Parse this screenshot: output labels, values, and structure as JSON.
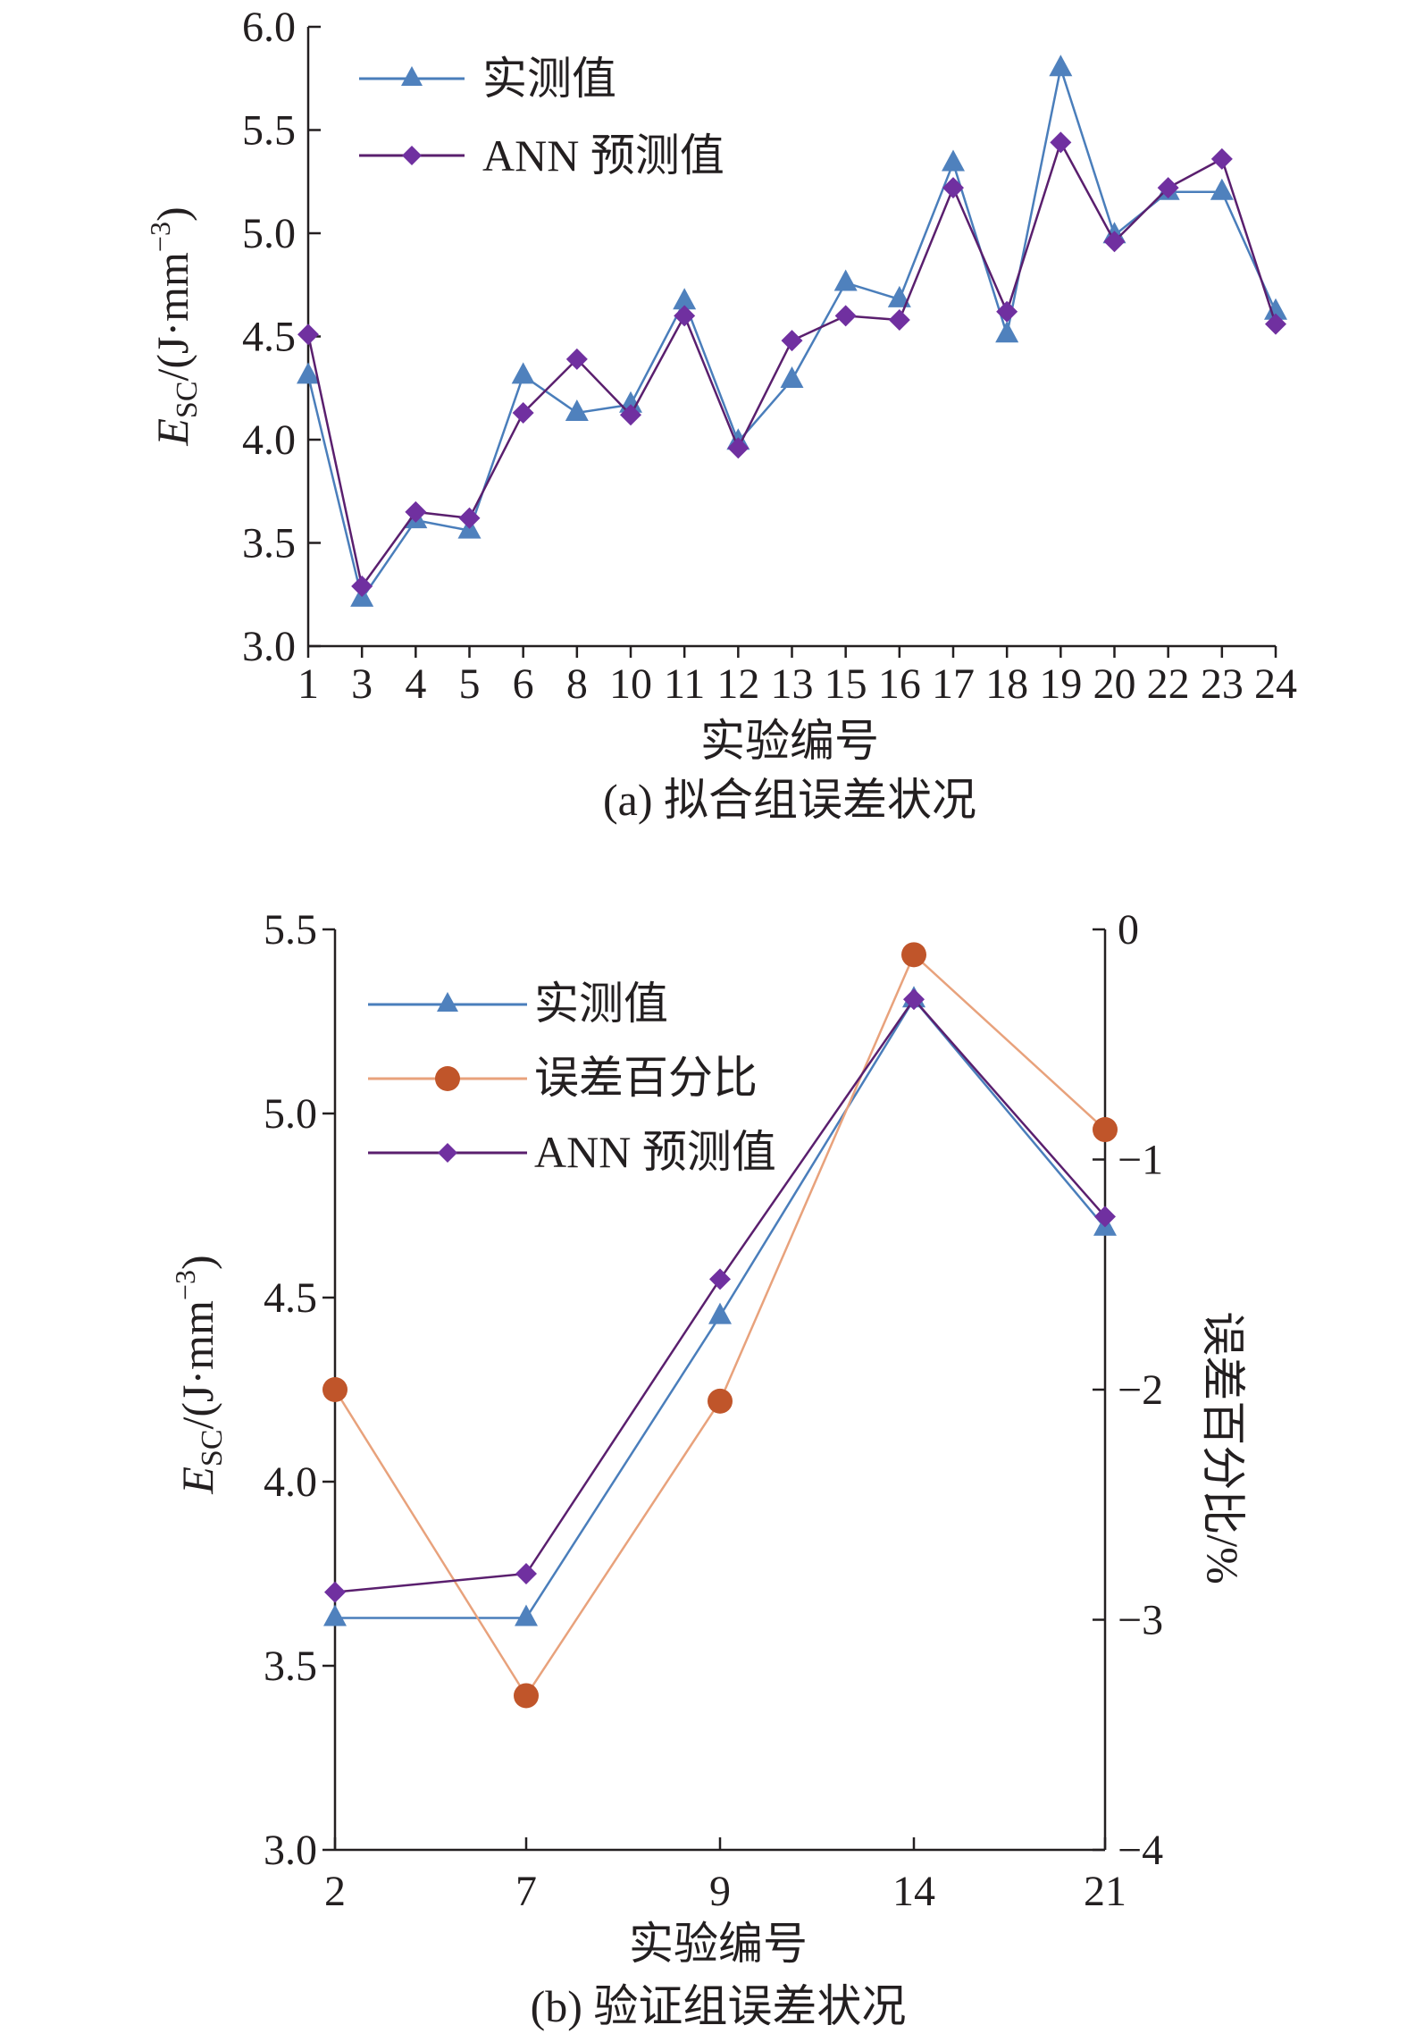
{
  "colors": {
    "measured": "#4a7ebb",
    "measured_marker": "#4f81bd",
    "ann": "#5a1f6e",
    "ann_marker": "#7030a0",
    "error": "#e8a27c",
    "error_marker": "#c0552a",
    "axis": "#231f20"
  },
  "chart_data": [
    {
      "type": "line",
      "caption": "(a) 拟合组误差状况",
      "xlabel": "实验编号",
      "ylabel": "E_SC/(J·mm^-3)",
      "ylabel_parts": {
        "main": "E",
        "sub": "SC",
        "mid": "/(J·mm",
        "sup": "−3",
        "end": ")"
      },
      "ylim": [
        3.0,
        6.0
      ],
      "yticks": [
        "3.0",
        "3.5",
        "4.0",
        "4.5",
        "5.0",
        "5.5",
        "6.0"
      ],
      "categories": [
        "1",
        "3",
        "4",
        "5",
        "6",
        "8",
        "10",
        "11",
        "12",
        "13",
        "15",
        "16",
        "17",
        "18",
        "19",
        "20",
        "22",
        "23",
        "24"
      ],
      "series": [
        {
          "name": "实测值",
          "marker": "triangle",
          "values": [
            4.31,
            3.23,
            3.61,
            3.56,
            4.31,
            4.13,
            4.17,
            4.67,
            3.99,
            4.29,
            4.76,
            4.68,
            5.34,
            4.51,
            5.8,
            4.99,
            5.2,
            5.2,
            4.62
          ]
        },
        {
          "name": "ANN 预测值",
          "marker": "diamond",
          "values": [
            4.51,
            3.29,
            3.65,
            3.62,
            4.13,
            4.39,
            4.12,
            4.6,
            3.96,
            4.48,
            4.6,
            4.58,
            5.22,
            4.62,
            5.44,
            4.96,
            5.22,
            5.36,
            4.56
          ]
        }
      ]
    },
    {
      "type": "line",
      "caption": "(b) 验证组误差状况",
      "xlabel": "实验编号",
      "ylabel": "E_SC/(J·mm^-3)",
      "ylabel_parts": {
        "main": "E",
        "sub": "SC",
        "mid": "/(J·mm",
        "sup": "−3",
        "end": ")"
      },
      "y2label": "误差百分比/%",
      "ylim": [
        3.0,
        5.5
      ],
      "yticks": [
        "3.0",
        "3.5",
        "4.0",
        "4.5",
        "5.0",
        "5.5"
      ],
      "y2lim": [
        -4,
        0
      ],
      "y2ticks": [
        "−4",
        "−3",
        "−2",
        "−1",
        "0"
      ],
      "categories": [
        "2",
        "7",
        "9",
        "14",
        "21"
      ],
      "series": [
        {
          "name": "实测值",
          "marker": "triangle",
          "axis": "left",
          "values": [
            3.63,
            3.63,
            4.45,
            5.31,
            4.69
          ]
        },
        {
          "name": "误差百分比",
          "marker": "circle",
          "axis": "right",
          "values": [
            -2.0,
            -3.33,
            -2.05,
            -0.11,
            -0.87
          ]
        },
        {
          "name": "ANN 预测值",
          "marker": "diamond",
          "axis": "left",
          "values": [
            3.7,
            3.75,
            4.55,
            5.31,
            4.72
          ]
        }
      ]
    }
  ]
}
